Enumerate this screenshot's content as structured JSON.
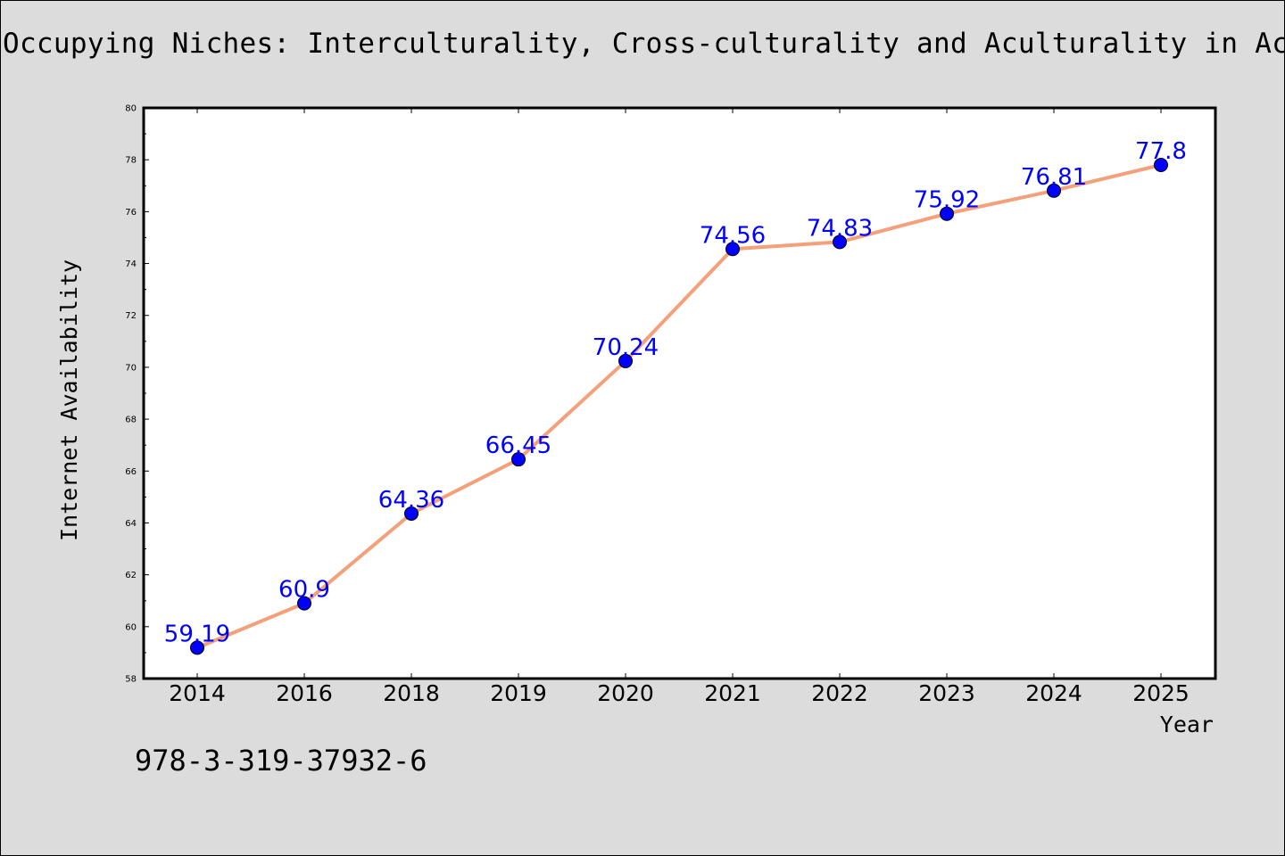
{
  "title": "Occupying Niches: Interculturality, Cross-culturality and Aculturality in Academ",
  "footer_text": "978-3-319-37932-6",
  "colors": {
    "background": "#dcdcdc",
    "line": "#f4a07a",
    "marker": "#0000ff",
    "label": "#0000ff"
  },
  "chart_data": {
    "type": "line",
    "title": "Occupying Niches: Interculturality, Cross-culturality and Aculturality in Academ",
    "xlabel": "Year",
    "ylabel": "Internet Availability",
    "categories": [
      "2014",
      "2016",
      "2018",
      "2019",
      "2020",
      "2021",
      "2022",
      "2023",
      "2024",
      "2025"
    ],
    "series": [
      {
        "values": [
          59.19,
          60.9,
          64.36,
          66.45,
          70.24,
          74.56,
          74.83,
          75.92,
          76.81,
          77.8
        ]
      }
    ],
    "data_labels": [
      "59.19",
      "60.9",
      "64.36",
      "66.45",
      "70.24",
      "74.56",
      "74.83",
      "75.92",
      "76.81",
      "77.8"
    ],
    "ylim": [
      58,
      80
    ],
    "yticks": [
      "58",
      "60",
      "62",
      "64",
      "66",
      "68",
      "70",
      "72",
      "74",
      "76",
      "78",
      "80"
    ],
    "grid": false,
    "legend": "none"
  }
}
